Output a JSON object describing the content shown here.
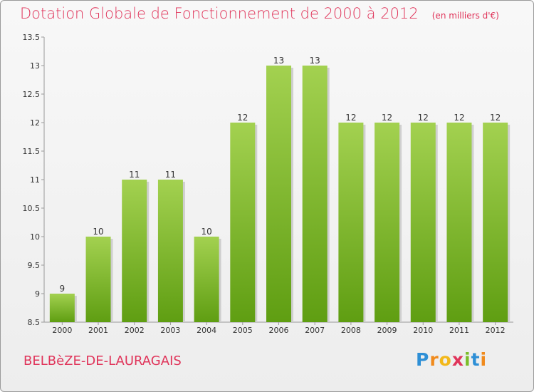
{
  "title": "Dotation Globale de Fonctionnement de 2000 à 2012",
  "subtitle": "(en milliers d'€)",
  "commune": "BELBèZE-DE-LAURAGAIS",
  "brand": {
    "letters": [
      "P",
      "r",
      "o",
      "x",
      "i",
      "t",
      "i"
    ],
    "colors": [
      "#2e8fd6",
      "#f08a1c",
      "#f2b81a",
      "#e0345a",
      "#7cbd2a",
      "#2e8fd6",
      "#f08a1c"
    ]
  },
  "colors": {
    "bar_top": "#a3d150",
    "bar_bottom": "#5f9e12",
    "title": "#e0345a"
  },
  "chart_data": {
    "type": "bar",
    "categories": [
      "2000",
      "2001",
      "2002",
      "2003",
      "2004",
      "2005",
      "2006",
      "2007",
      "2008",
      "2009",
      "2010",
      "2011",
      "2012"
    ],
    "values": [
      9,
      10,
      11,
      11,
      10,
      12,
      13,
      13,
      12,
      12,
      12,
      12,
      12
    ],
    "data_labels": [
      "9",
      "10",
      "11",
      "11",
      "10",
      "12",
      "13",
      "13",
      "12",
      "12",
      "12",
      "12",
      "12"
    ],
    "ylim": [
      8.5,
      13.5
    ],
    "yticks": [
      8.5,
      9,
      9.5,
      10,
      10.5,
      11,
      11.5,
      12,
      12.5,
      13,
      13.5
    ],
    "ytick_labels": [
      "8.5",
      "9",
      "9.5",
      "10",
      "10.5",
      "11",
      "11.5",
      "12",
      "12.5",
      "13",
      "13.5"
    ],
    "grid": false,
    "legend": "none"
  }
}
